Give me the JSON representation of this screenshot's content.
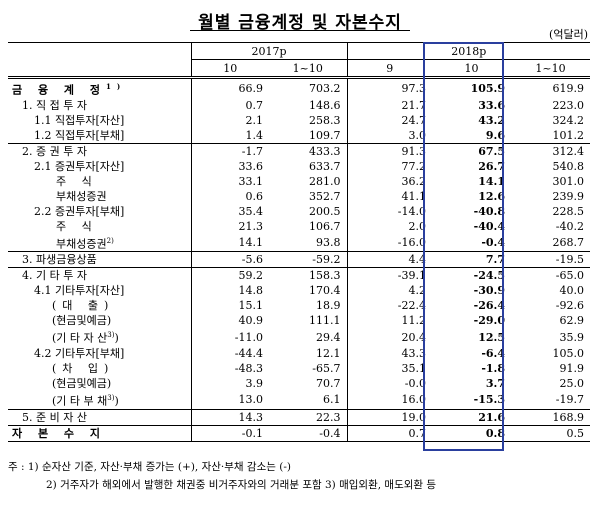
{
  "title": "월별 금융계정 및 자본수지",
  "unit": "(억달러)",
  "header": {
    "year1": "2017p",
    "year2": "2018p",
    "cols": [
      "10",
      "1~10",
      "9",
      "10",
      "1~10"
    ]
  },
  "rows": [
    {
      "label": "금 융 계 정",
      "sup": "1)",
      "vals": [
        "66.9",
        "703.2",
        "97.3",
        "105.9",
        "619.9"
      ]
    },
    {
      "label": "1. 직 접 투 자",
      "vals": [
        "0.7",
        "148.6",
        "21.7",
        "33.6",
        "223.0"
      ]
    },
    {
      "label": "1.1 직접투자[자산]",
      "vals": [
        "2.1",
        "258.3",
        "24.7",
        "43.2",
        "324.2"
      ]
    },
    {
      "label": "1.2 직접투자[부채]",
      "vals": [
        "1.4",
        "109.7",
        "3.0",
        "9.6",
        "101.2"
      ]
    },
    {
      "label": "2. 증 권 투 자",
      "vals": [
        "-1.7",
        "433.3",
        "91.3",
        "67.5",
        "312.4"
      ]
    },
    {
      "label": "2.1 증권투자[자산]",
      "vals": [
        "33.6",
        "633.7",
        "77.2",
        "26.7",
        "540.8"
      ]
    },
    {
      "label": "주 식",
      "vals": [
        "33.1",
        "281.0",
        "36.2",
        "14.1",
        "301.0"
      ]
    },
    {
      "label": "부채성증권",
      "vals": [
        "0.6",
        "352.7",
        "41.1",
        "12.6",
        "239.9"
      ]
    },
    {
      "label": "2.2 증권투자[부채]",
      "vals": [
        "35.4",
        "200.5",
        "-14.0",
        "-40.8",
        "228.5"
      ]
    },
    {
      "label": "주 식",
      "vals": [
        "21.3",
        "106.7",
        "2.0",
        "-40.4",
        "-40.2"
      ]
    },
    {
      "label": "부채성증권",
      "sup": "2)",
      "vals": [
        "14.1",
        "93.8",
        "-16.0",
        "-0.4",
        "268.7"
      ]
    },
    {
      "label": "3. 파생금융상품",
      "vals": [
        "-5.6",
        "-59.2",
        "4.4",
        "7.7",
        "-19.5"
      ]
    },
    {
      "label": "4. 기 타 투 자",
      "vals": [
        "59.2",
        "158.3",
        "-39.1",
        "-24.5",
        "-65.0"
      ]
    },
    {
      "label": "4.1 기타투자[자산]",
      "vals": [
        "14.8",
        "170.4",
        "4.2",
        "-30.9",
        "40.0"
      ]
    },
    {
      "label": "(대 출)",
      "vals": [
        "15.1",
        "18.9",
        "-22.4",
        "-26.4",
        "-92.6"
      ]
    },
    {
      "label": "(현금및예금)",
      "vals": [
        "40.9",
        "111.1",
        "11.2",
        "-29.0",
        "62.9"
      ]
    },
    {
      "label": "(기 타 자 산",
      "sup": "3)",
      "tail": ")",
      "vals": [
        "-11.0",
        "29.4",
        "20.4",
        "12.5",
        "35.9"
      ]
    },
    {
      "label": "4.2 기타투자[부채]",
      "vals": [
        "-44.4",
        "12.1",
        "43.3",
        "-6.4",
        "105.0"
      ]
    },
    {
      "label": "(차 입)",
      "vals": [
        "-48.3",
        "-65.7",
        "35.1",
        "-1.8",
        "91.9"
      ]
    },
    {
      "label": "(현금및예금)",
      "vals": [
        "3.9",
        "70.7",
        "-0.0",
        "3.7",
        "25.0"
      ]
    },
    {
      "label": "(기 타 부 채",
      "sup": "3)",
      "tail": ")",
      "vals": [
        "13.0",
        "6.1",
        "16.0",
        "-15.3",
        "-19.7"
      ]
    },
    {
      "label": "5. 준 비 자 산",
      "vals": [
        "14.3",
        "22.3",
        "19.0",
        "21.6",
        "168.9"
      ]
    },
    {
      "label": "자 본 수 지",
      "vals": [
        "-0.1",
        "-0.4",
        "0.7",
        "0.8",
        "0.5"
      ]
    }
  ],
  "notes": [
    "주 : 1) 순자산 기준, 자산·부채 증가는 (+), 자산·부채 감소는 (-)",
    "2) 거주자가 해외에서 발행한 채권중 비거주자와의 거래분 포함   3) 매입외환, 매도외환 등"
  ],
  "highlight_color": "#2a3f9e"
}
